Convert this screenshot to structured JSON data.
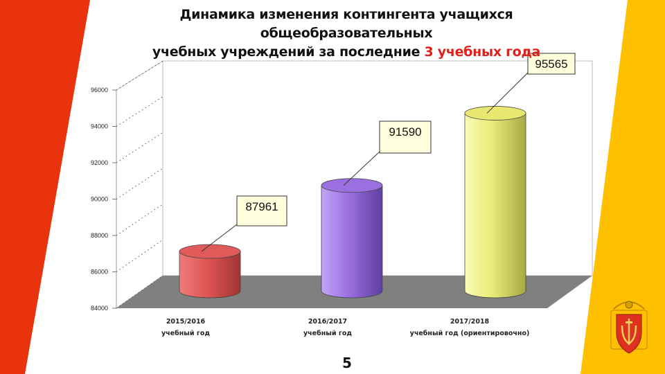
{
  "title": {
    "line1": "Динамика изменения контингента учащихся общеобразовательных",
    "line2_main": "учебных учреждений  за последние ",
    "line2_accent": "3 учебных года"
  },
  "colors": {
    "left_band": "#e8330d",
    "right_band": "#ffc000",
    "accent_text": "#e0201a",
    "floor": "#808080",
    "bars": [
      "#e05a5a",
      "#9b6fe0",
      "#e8e870"
    ]
  },
  "chart_data": {
    "type": "bar",
    "style": "3d-cylinder",
    "categories": [
      [
        "2015/2016",
        "учебный год"
      ],
      [
        "2016/2017",
        "учебный год"
      ],
      [
        "2017/2018",
        "учебный год (ориентировочно)"
      ]
    ],
    "values": [
      87961,
      91590,
      95565
    ],
    "data_labels": [
      "87961",
      "91590",
      "95565"
    ],
    "yticks": [
      84000,
      86000,
      88000,
      90000,
      92000,
      94000,
      96000
    ],
    "ytick_labels": [
      "84000",
      "86000",
      "88000",
      "90000",
      "92000",
      "94000",
      "96000"
    ],
    "ylim": [
      84000,
      96000
    ],
    "grid": true,
    "legend": "none"
  },
  "page_number": "5",
  "emblem": "odesa-coat-of-arms"
}
